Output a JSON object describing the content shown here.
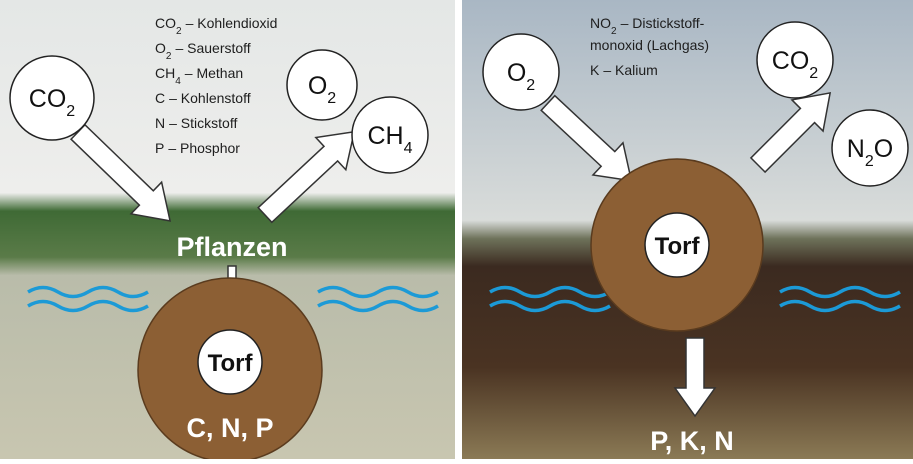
{
  "left_panel": {
    "legend": [
      {
        "formula": "CO",
        "sub": "2",
        "name": "– Kohlendioxid"
      },
      {
        "formula": "O",
        "sub": "2",
        "name": "– Sauerstoff"
      },
      {
        "formula": "CH",
        "sub": "4",
        "name": "– Methan"
      },
      {
        "formula": "C",
        "name": "– Kohlenstoff"
      },
      {
        "formula": "N",
        "name": "– Stickstoff"
      },
      {
        "formula": "P",
        "name": "– Phosphor"
      }
    ],
    "bubbles": [
      {
        "formula": "CO",
        "sub": "2"
      },
      {
        "formula": "O",
        "sub": "2"
      },
      {
        "formula": "CH",
        "sub": "4"
      }
    ],
    "plants_label": "Pflanzen",
    "peat_label": "Torf",
    "nutrients_label": "C, N, P"
  },
  "right_panel": {
    "legend": [
      {
        "formula": "NO",
        "sub": "2",
        "name": "– Distickstoff-"
      },
      {
        "name": "monoxid (Lachgas)"
      },
      {
        "formula": "K",
        "name": "– Kalium"
      }
    ],
    "bubbles": [
      {
        "formula": "O",
        "sub": "2"
      },
      {
        "formula": "CO",
        "sub": "2"
      },
      {
        "formula": "N",
        "sub": "2",
        "rest": "O"
      }
    ],
    "peat_label": "Torf",
    "nutrients_label": "P, K, N"
  }
}
